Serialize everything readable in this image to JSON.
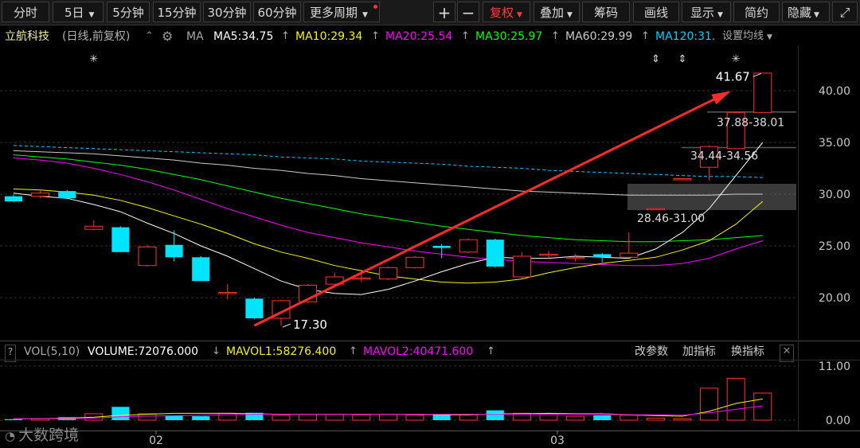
{
  "toolbar": {
    "tabs": [
      "分时",
      "5日",
      "5分钟",
      "15分钟",
      "30分钟",
      "60分钟",
      "更多周期"
    ],
    "right_buttons": [
      "+",
      "−",
      "复权",
      "叠加",
      "筹码",
      "画线",
      "显示",
      "简约",
      "隐藏"
    ],
    "active_button": "复权"
  },
  "stock": {
    "name": "立航科技",
    "mode": "(日线,前复权)",
    "ma_label": "MA",
    "ma5": "MA5:34.75",
    "ma10": "MA10:29.34",
    "ma20": "MA20:25.54",
    "ma30": "MA30:25.97",
    "ma60": "MA60:29.99",
    "ma120": "MA120:31.",
    "set_ma": "设置均线"
  },
  "volume_panel": {
    "title": "VOL(5,10)",
    "volume": "VOLUME:72076.000",
    "mavol1": "MAVOL1:58276.400",
    "mavol2": "MAVOL2:40471.600",
    "buttons": [
      "改参数",
      "加指标",
      "换指标"
    ]
  },
  "annotations": {
    "high": "41.67",
    "low": "17.30",
    "gap1": "37.88-38.01",
    "gap2": "34.44-34.56",
    "gap3": "28.46-31.00"
  },
  "watermark": "大数跨境",
  "colors": {
    "up": "#ff3232",
    "down": "#00e4ff",
    "ma5": "#ffffff",
    "ma10": "#f5f500",
    "ma20": "#ff00ff",
    "ma30": "#00ff00",
    "ma60": "#cccccc",
    "ma120": "#00d0ff"
  },
  "chart_data": {
    "type": "candlestick",
    "y_ticks": [
      "40.00",
      "35.00",
      "30.00",
      "25.00",
      "20.00"
    ],
    "vol_ticks": [
      "11.00",
      "0.00"
    ],
    "x_labels": [
      "02",
      "03"
    ],
    "candles": [
      {
        "o": 29.8,
        "c": 29.3,
        "h": 30.0,
        "l": 29.2
      },
      {
        "o": 29.8,
        "c": 30.1,
        "h": 30.4,
        "l": 29.6
      },
      {
        "o": 30.3,
        "c": 29.6,
        "h": 30.4,
        "l": 29.5
      },
      {
        "o": 26.6,
        "c": 26.9,
        "h": 27.5,
        "l": 26.5
      },
      {
        "o": 26.8,
        "c": 24.4,
        "h": 26.9,
        "l": 24.4
      },
      {
        "o": 23.1,
        "c": 24.9,
        "h": 25.1,
        "l": 23.0
      },
      {
        "o": 25.1,
        "c": 23.9,
        "h": 26.5,
        "l": 23.5
      },
      {
        "o": 23.9,
        "c": 21.6,
        "h": 24.0,
        "l": 21.6
      },
      {
        "o": 20.5,
        "c": 20.5,
        "h": 21.3,
        "l": 19.8
      },
      {
        "o": 19.9,
        "c": 18.0,
        "h": 20.0,
        "l": 17.9
      },
      {
        "o": 18.0,
        "c": 19.7,
        "h": 19.8,
        "l": 17.3
      },
      {
        "o": 19.6,
        "c": 21.2,
        "h": 21.3,
        "l": 19.5
      },
      {
        "o": 21.3,
        "c": 22.0,
        "h": 22.4,
        "l": 21.3
      },
      {
        "o": 21.8,
        "c": 21.9,
        "h": 22.7,
        "l": 21.5
      },
      {
        "o": 21.8,
        "c": 22.9,
        "h": 23.0,
        "l": 21.7
      },
      {
        "o": 22.9,
        "c": 23.9,
        "h": 24.0,
        "l": 22.8
      },
      {
        "o": 25.0,
        "c": 24.8,
        "h": 25.2,
        "l": 23.8
      },
      {
        "o": 24.4,
        "c": 25.6,
        "h": 25.7,
        "l": 24.3
      },
      {
        "o": 25.6,
        "c": 23.0,
        "h": 25.7,
        "l": 22.9
      },
      {
        "o": 22.0,
        "c": 24.0,
        "h": 24.4,
        "l": 21.8
      },
      {
        "o": 24.1,
        "c": 24.2,
        "h": 24.5,
        "l": 23.8
      },
      {
        "o": 23.9,
        "c": 23.9,
        "h": 24.2,
        "l": 23.5
      },
      {
        "o": 24.2,
        "c": 23.9,
        "h": 24.3,
        "l": 23.4
      },
      {
        "o": 23.9,
        "c": 24.3,
        "h": 26.3,
        "l": 23.8
      },
      {
        "o": 28.5,
        "c": 28.6,
        "h": 28.6,
        "l": 28.5
      },
      {
        "o": 31.4,
        "c": 31.5,
        "h": 31.5,
        "l": 31.4
      },
      {
        "o": 32.6,
        "c": 34.6,
        "h": 34.7,
        "l": 31.3
      },
      {
        "o": 34.4,
        "c": 37.9,
        "h": 38.0,
        "l": 34.4
      },
      {
        "o": 37.9,
        "c": 41.7,
        "h": 41.7,
        "l": 37.9
      }
    ],
    "volumes": [
      0.2,
      0.3,
      0.6,
      1.3,
      2.7,
      1.3,
      1.0,
      0.8,
      1.4,
      1.5,
      1.0,
      1.2,
      1.2,
      1.1,
      1.2,
      1.0,
      1.2,
      1.1,
      2.0,
      1.4,
      1.2,
      0.8,
      1.0,
      1.0,
      0.4,
      0.3,
      6.5,
      8.5,
      5.5
    ],
    "ma5": [
      30.1,
      29.8,
      29.6,
      29.0,
      28.3,
      27.2,
      26.2,
      25.0,
      24.0,
      22.8,
      21.6,
      20.8,
      20.4,
      20.3,
      20.8,
      21.6,
      22.5,
      23.3,
      23.9,
      23.8,
      23.8,
      24.0,
      23.9,
      23.8,
      24.7,
      26.3,
      28.6,
      31.8,
      35.0
    ],
    "ma10": [
      30.5,
      30.4,
      30.2,
      29.9,
      29.4,
      28.7,
      27.9,
      27.1,
      26.2,
      25.2,
      24.4,
      23.8,
      23.1,
      22.6,
      22.1,
      21.8,
      21.5,
      21.4,
      21.5,
      21.8,
      22.4,
      22.9,
      23.3,
      23.6,
      23.9,
      24.6,
      25.5,
      27.1,
      29.3
    ],
    "ma20": [
      33.5,
      33.3,
      33.0,
      32.5,
      31.9,
      31.2,
      30.4,
      29.5,
      28.6,
      27.8,
      27.0,
      26.3,
      25.8,
      25.3,
      24.9,
      24.5,
      24.2,
      23.9,
      23.7,
      23.5,
      23.4,
      23.3,
      23.2,
      23.1,
      23.1,
      23.3,
      23.8,
      24.7,
      25.5
    ],
    "ma30": [
      33.8,
      33.6,
      33.4,
      33.1,
      32.8,
      32.4,
      31.9,
      31.4,
      30.8,
      30.2,
      29.6,
      29.1,
      28.6,
      28.1,
      27.7,
      27.3,
      26.9,
      26.6,
      26.3,
      26.0,
      25.8,
      25.6,
      25.5,
      25.4,
      25.4,
      25.5,
      25.6,
      25.8,
      26.0
    ],
    "ma60": [
      34.2,
      34.1,
      34.0,
      33.9,
      33.7,
      33.5,
      33.3,
      33.0,
      32.8,
      32.5,
      32.3,
      32.0,
      31.8,
      31.5,
      31.3,
      31.1,
      30.9,
      30.7,
      30.5,
      30.3,
      30.2,
      30.1,
      30.0,
      29.9,
      29.9,
      29.9,
      29.9,
      30.0,
      30.0
    ],
    "ma120": [
      34.7,
      34.6,
      34.5,
      34.4,
      34.3,
      34.2,
      34.1,
      34.0,
      33.9,
      33.8,
      33.6,
      33.5,
      33.4,
      33.2,
      33.1,
      33.0,
      32.9,
      32.7,
      32.6,
      32.5,
      32.3,
      32.2,
      32.1,
      32.0,
      31.9,
      31.8,
      31.7,
      31.7,
      31.6
    ],
    "mavol1": [
      0.3,
      0.3,
      0.4,
      0.6,
      1.0,
      1.2,
      1.4,
      1.4,
      1.4,
      1.3,
      1.2,
      1.2,
      1.2,
      1.2,
      1.2,
      1.2,
      1.1,
      1.1,
      1.3,
      1.3,
      1.4,
      1.3,
      1.3,
      1.1,
      0.9,
      0.8,
      1.8,
      3.4,
      4.3
    ],
    "mavol2": [
      0.3,
      0.3,
      0.3,
      0.4,
      0.7,
      0.8,
      0.9,
      1.0,
      1.1,
      1.2,
      1.2,
      1.2,
      1.2,
      1.2,
      1.2,
      1.2,
      1.2,
      1.2,
      1.2,
      1.2,
      1.2,
      1.2,
      1.2,
      1.1,
      1.1,
      1.0,
      1.5,
      2.2,
      2.9
    ]
  }
}
